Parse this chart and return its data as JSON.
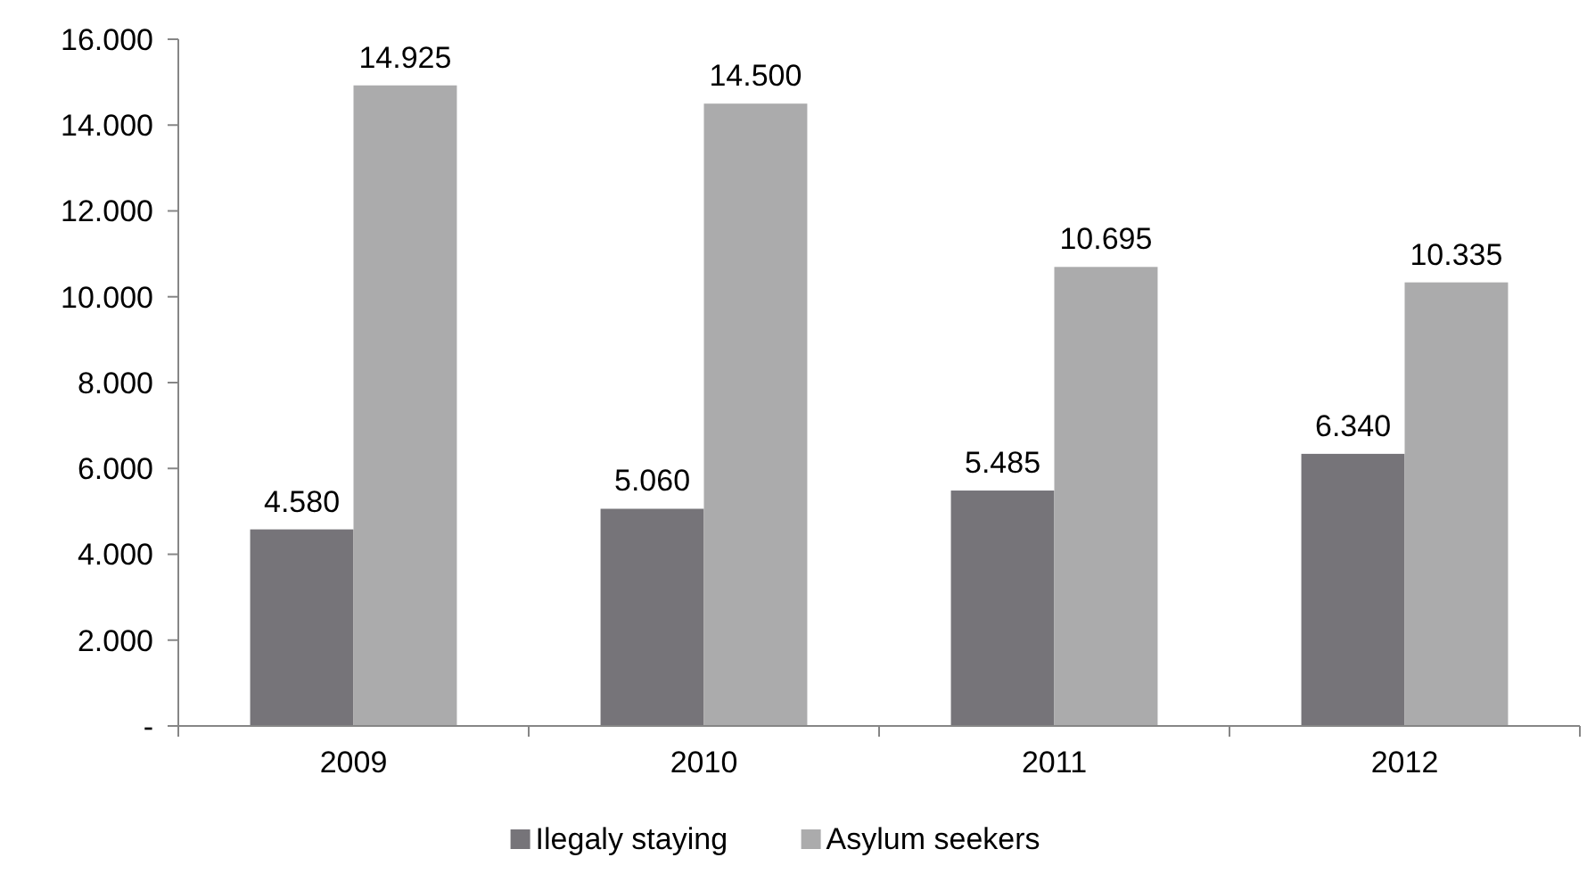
{
  "chart_data": {
    "type": "bar",
    "categories": [
      "2009",
      "2010",
      "2011",
      "2012"
    ],
    "series": [
      {
        "name": "Ilegaly staying",
        "color": "#767479",
        "values": [
          4580,
          5060,
          5485,
          6340
        ],
        "value_labels": [
          "4.580",
          "5.060",
          "5.485",
          "6.340"
        ]
      },
      {
        "name": "Asylum seekers",
        "color": "#ababac",
        "values": [
          14925,
          14500,
          10695,
          10335
        ],
        "value_labels": [
          "14.925",
          "14.500",
          "10.695",
          "10.335"
        ]
      }
    ],
    "ylim": [
      0,
      16000
    ],
    "yticks": [
      {
        "value": 0,
        "label": "-"
      },
      {
        "value": 2000,
        "label": "2.000"
      },
      {
        "value": 4000,
        "label": "4.000"
      },
      {
        "value": 6000,
        "label": "6.000"
      },
      {
        "value": 8000,
        "label": "8.000"
      },
      {
        "value": 10000,
        "label": "10.000"
      },
      {
        "value": 12000,
        "label": "12.000"
      },
      {
        "value": 14000,
        "label": "14.000"
      },
      {
        "value": 16000,
        "label": "16.000"
      }
    ],
    "grid": false,
    "legend": "bottom"
  }
}
